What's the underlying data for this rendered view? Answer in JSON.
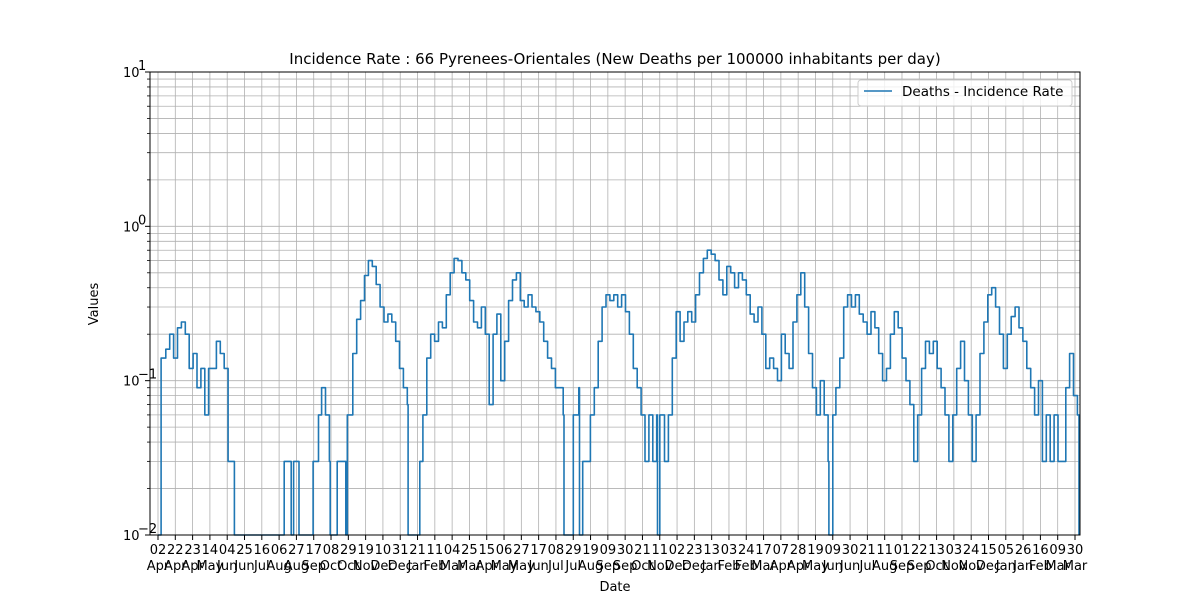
{
  "chart_data": {
    "type": "line",
    "title": "Incidence Rate : 66 Pyrenees-Orientales (New Deaths per 100000 inhabitants per day)",
    "xlabel": "Date",
    "ylabel": "Values",
    "yscale": "log",
    "ylim": [
      0.01,
      10
    ],
    "y_ticks": [
      {
        "value": 0.01,
        "label": "10"
      },
      {
        "value": 0.1,
        "label": "10"
      },
      {
        "value": 1,
        "label": "10"
      },
      {
        "value": 10,
        "label": "10"
      }
    ],
    "y_tick_exponents": [
      "−2",
      "−1",
      "0",
      "1"
    ],
    "grid": true,
    "legend": {
      "position": "upper right",
      "entries": [
        "Deaths - Incidence Rate"
      ]
    },
    "series_color": "#1f77b4",
    "x_ticks": [
      {
        "day": "02",
        "month": "Apr"
      },
      {
        "day": "22",
        "month": "Apr"
      },
      {
        "day": "23",
        "month": "Apr"
      },
      {
        "day": "14",
        "month": "May"
      },
      {
        "day": "04",
        "month": "Jun"
      },
      {
        "day": "25",
        "month": "Jun"
      },
      {
        "day": "16",
        "month": "Jul"
      },
      {
        "day": "06",
        "month": "Aug"
      },
      {
        "day": "27",
        "month": "Aug"
      },
      {
        "day": "17",
        "month": "Sep"
      },
      {
        "day": "08",
        "month": "Oct"
      },
      {
        "day": "29",
        "month": "Oct"
      },
      {
        "day": "19",
        "month": "Nov"
      },
      {
        "day": "10",
        "month": "Dec"
      },
      {
        "day": "31",
        "month": "Dec"
      },
      {
        "day": "21",
        "month": "Jan"
      },
      {
        "day": "11",
        "month": "Feb"
      },
      {
        "day": "04",
        "month": "Mar"
      },
      {
        "day": "25",
        "month": "Mar"
      },
      {
        "day": "15",
        "month": "Apr"
      },
      {
        "day": "06",
        "month": "May"
      },
      {
        "day": "27",
        "month": "May"
      },
      {
        "day": "17",
        "month": "Jun"
      },
      {
        "day": "08",
        "month": "Jul"
      },
      {
        "day": "29",
        "month": "Jul"
      },
      {
        "day": "19",
        "month": "Aug"
      },
      {
        "day": "09",
        "month": "Sep"
      },
      {
        "day": "30",
        "month": "Sep"
      },
      {
        "day": "21",
        "month": "Oct"
      },
      {
        "day": "11",
        "month": "Nov"
      },
      {
        "day": "02",
        "month": "Dec"
      },
      {
        "day": "23",
        "month": "Dec"
      },
      {
        "day": "13",
        "month": "Jan"
      },
      {
        "day": "03",
        "month": "Feb"
      },
      {
        "day": "24",
        "month": "Feb"
      },
      {
        "day": "17",
        "month": "Mar"
      },
      {
        "day": "07",
        "month": "Apr"
      },
      {
        "day": "28",
        "month": "Apr"
      },
      {
        "day": "19",
        "month": "May"
      },
      {
        "day": "09",
        "month": "Jun"
      },
      {
        "day": "30",
        "month": "Jun"
      },
      {
        "day": "21",
        "month": "Jul"
      },
      {
        "day": "11",
        "month": "Aug"
      },
      {
        "day": "01",
        "month": "Sep"
      },
      {
        "day": "22",
        "month": "Sep"
      },
      {
        "day": "13",
        "month": "Oct"
      },
      {
        "day": "03",
        "month": "Nov"
      },
      {
        "day": "24",
        "month": "Nov"
      },
      {
        "day": "15",
        "month": "Dec"
      },
      {
        "day": "05",
        "month": "Jan"
      },
      {
        "day": "26",
        "month": "Jan"
      },
      {
        "day": "16",
        "month": "Feb"
      },
      {
        "day": "09",
        "month": "Mar"
      },
      {
        "day": "30",
        "month": "Mar"
      }
    ],
    "series": [
      {
        "name": "Deaths - Incidence Rate",
        "points": [
          [
            0,
            0.01
          ],
          [
            0.4,
            0.14
          ],
          [
            1,
            0.16
          ],
          [
            1.5,
            0.2
          ],
          [
            2,
            0.14
          ],
          [
            2.5,
            0.22
          ],
          [
            3,
            0.24
          ],
          [
            3.5,
            0.2
          ],
          [
            4,
            0.12
          ],
          [
            4.5,
            0.15
          ],
          [
            5,
            0.09
          ],
          [
            5.5,
            0.12
          ],
          [
            6,
            0.06
          ],
          [
            6.5,
            0.12
          ],
          [
            7,
            0.12
          ],
          [
            7.5,
            0.18
          ],
          [
            8,
            0.15
          ],
          [
            8.5,
            0.12
          ],
          [
            9,
            0.03
          ],
          [
            9.6,
            0.03
          ],
          [
            9.8,
            0.01
          ],
          [
            16,
            0.01
          ],
          [
            16.2,
            0.03
          ],
          [
            17,
            0.03
          ],
          [
            17.1,
            0.01
          ],
          [
            17.4,
            0.03
          ],
          [
            18,
            0.03
          ],
          [
            18.1,
            0.01
          ],
          [
            19.8,
            0.01
          ],
          [
            19.9,
            0.03
          ],
          [
            20.5,
            0.03
          ],
          [
            20.6,
            0.06
          ],
          [
            21,
            0.09
          ],
          [
            21.5,
            0.06
          ],
          [
            22,
            0.03
          ],
          [
            22.1,
            0.01
          ],
          [
            23,
            0.03
          ],
          [
            24,
            0.03
          ],
          [
            24.1,
            0.01
          ],
          [
            24.3,
            0.06
          ],
          [
            25,
            0.15
          ],
          [
            25.5,
            0.25
          ],
          [
            26,
            0.33
          ],
          [
            26.5,
            0.48
          ],
          [
            27,
            0.6
          ],
          [
            27.5,
            0.55
          ],
          [
            28,
            0.42
          ],
          [
            28.5,
            0.3
          ],
          [
            29,
            0.24
          ],
          [
            29.5,
            0.27
          ],
          [
            30,
            0.24
          ],
          [
            30.5,
            0.18
          ],
          [
            31,
            0.12
          ],
          [
            31.5,
            0.09
          ],
          [
            32,
            0.07
          ],
          [
            32.1,
            0.01
          ],
          [
            33.5,
            0.01
          ],
          [
            33.6,
            0.03
          ],
          [
            34,
            0.06
          ],
          [
            34.5,
            0.14
          ],
          [
            35,
            0.2
          ],
          [
            35.5,
            0.18
          ],
          [
            36,
            0.24
          ],
          [
            36.5,
            0.22
          ],
          [
            37,
            0.36
          ],
          [
            37.5,
            0.5
          ],
          [
            38,
            0.62
          ],
          [
            38.5,
            0.6
          ],
          [
            39,
            0.5
          ],
          [
            39.5,
            0.45
          ],
          [
            40,
            0.33
          ],
          [
            40.5,
            0.24
          ],
          [
            41,
            0.22
          ],
          [
            41.5,
            0.3
          ],
          [
            42,
            0.2
          ],
          [
            42.5,
            0.07
          ],
          [
            43,
            0.2
          ],
          [
            43.5,
            0.27
          ],
          [
            44,
            0.1
          ],
          [
            44.5,
            0.18
          ],
          [
            45,
            0.33
          ],
          [
            45.5,
            0.45
          ],
          [
            46,
            0.5
          ],
          [
            46.5,
            0.33
          ],
          [
            47,
            0.3
          ],
          [
            47.5,
            0.36
          ],
          [
            48,
            0.3
          ],
          [
            48.5,
            0.28
          ],
          [
            49,
            0.24
          ],
          [
            49.5,
            0.18
          ],
          [
            50,
            0.14
          ],
          [
            50.5,
            0.12
          ],
          [
            51,
            0.09
          ],
          [
            51.5,
            0.09
          ],
          [
            52,
            0.06
          ],
          [
            52.1,
            0.01
          ],
          [
            53.2,
            0.01
          ],
          [
            53.3,
            0.06
          ],
          [
            54,
            0.09
          ],
          [
            54.1,
            0.01
          ],
          [
            54.5,
            0.03
          ],
          [
            55,
            0.03
          ],
          [
            55.5,
            0.06
          ],
          [
            56,
            0.09
          ],
          [
            56.5,
            0.18
          ],
          [
            57,
            0.3
          ],
          [
            57.5,
            0.36
          ],
          [
            58,
            0.33
          ],
          [
            58.5,
            0.36
          ],
          [
            59,
            0.3
          ],
          [
            59.5,
            0.36
          ],
          [
            60,
            0.28
          ],
          [
            60.5,
            0.2
          ],
          [
            61,
            0.12
          ],
          [
            61.5,
            0.09
          ],
          [
            62,
            0.06
          ],
          [
            62.5,
            0.03
          ],
          [
            63,
            0.06
          ],
          [
            63.5,
            0.03
          ],
          [
            64,
            0.06
          ],
          [
            64.1,
            0.01
          ],
          [
            64.4,
            0.06
          ],
          [
            65,
            0.03
          ],
          [
            65.5,
            0.06
          ],
          [
            66,
            0.14
          ],
          [
            66.5,
            0.28
          ],
          [
            67,
            0.18
          ],
          [
            67.5,
            0.24
          ],
          [
            68,
            0.28
          ],
          [
            68.5,
            0.24
          ],
          [
            69,
            0.36
          ],
          [
            69.5,
            0.5
          ],
          [
            70,
            0.62
          ],
          [
            70.5,
            0.7
          ],
          [
            71,
            0.66
          ],
          [
            71.5,
            0.6
          ],
          [
            72,
            0.45
          ],
          [
            72.5,
            0.36
          ],
          [
            73,
            0.55
          ],
          [
            73.5,
            0.5
          ],
          [
            74,
            0.4
          ],
          [
            74.5,
            0.5
          ],
          [
            75,
            0.45
          ],
          [
            75.5,
            0.36
          ],
          [
            76,
            0.27
          ],
          [
            76.5,
            0.24
          ],
          [
            77,
            0.3
          ],
          [
            77.5,
            0.2
          ],
          [
            78,
            0.12
          ],
          [
            78.5,
            0.14
          ],
          [
            79,
            0.12
          ],
          [
            79.5,
            0.1
          ],
          [
            80,
            0.2
          ],
          [
            80.5,
            0.15
          ],
          [
            81,
            0.12
          ],
          [
            81.5,
            0.24
          ],
          [
            82,
            0.36
          ],
          [
            82.5,
            0.5
          ],
          [
            83,
            0.3
          ],
          [
            83.5,
            0.15
          ],
          [
            84,
            0.09
          ],
          [
            84.5,
            0.06
          ],
          [
            85,
            0.1
          ],
          [
            85.5,
            0.06
          ],
          [
            86,
            0.03
          ],
          [
            86.1,
            0.01
          ],
          [
            86.5,
            0.01
          ],
          [
            86.6,
            0.06
          ],
          [
            87,
            0.09
          ],
          [
            87.5,
            0.14
          ],
          [
            88,
            0.3
          ],
          [
            88.5,
            0.36
          ],
          [
            89,
            0.3
          ],
          [
            89.5,
            0.36
          ],
          [
            90,
            0.27
          ],
          [
            90.5,
            0.24
          ],
          [
            91,
            0.2
          ],
          [
            91.5,
            0.28
          ],
          [
            92,
            0.22
          ],
          [
            92.5,
            0.15
          ],
          [
            93,
            0.1
          ],
          [
            93.5,
            0.12
          ],
          [
            94,
            0.2
          ],
          [
            94.5,
            0.28
          ],
          [
            95,
            0.22
          ],
          [
            95.5,
            0.14
          ],
          [
            96,
            0.1
          ],
          [
            96.5,
            0.07
          ],
          [
            97,
            0.03
          ],
          [
            97.5,
            0.06
          ],
          [
            98,
            0.12
          ],
          [
            98.5,
            0.18
          ],
          [
            99,
            0.15
          ],
          [
            99.5,
            0.18
          ],
          [
            100,
            0.12
          ],
          [
            100.5,
            0.09
          ],
          [
            101,
            0.06
          ],
          [
            101.5,
            0.03
          ],
          [
            102,
            0.06
          ],
          [
            102.5,
            0.12
          ],
          [
            103,
            0.18
          ],
          [
            103.5,
            0.1
          ],
          [
            104,
            0.06
          ],
          [
            104.5,
            0.03
          ],
          [
            105,
            0.06
          ],
          [
            105.5,
            0.15
          ],
          [
            106,
            0.24
          ],
          [
            106.5,
            0.36
          ],
          [
            107,
            0.4
          ],
          [
            107.5,
            0.3
          ],
          [
            108,
            0.2
          ],
          [
            108.5,
            0.12
          ],
          [
            109,
            0.2
          ],
          [
            109.5,
            0.26
          ],
          [
            110,
            0.3
          ],
          [
            110.5,
            0.22
          ],
          [
            111,
            0.18
          ],
          [
            111.5,
            0.12
          ],
          [
            112,
            0.09
          ],
          [
            112.5,
            0.06
          ],
          [
            113,
            0.1
          ],
          [
            113.5,
            0.03
          ],
          [
            114,
            0.06
          ],
          [
            114.5,
            0.03
          ],
          [
            115,
            0.06
          ],
          [
            115.5,
            0.03
          ],
          [
            116,
            0.03
          ],
          [
            116.5,
            0.09
          ],
          [
            117,
            0.15
          ],
          [
            117.5,
            0.08
          ],
          [
            118,
            0.06
          ],
          [
            118.2,
            0.01
          ]
        ]
      }
    ]
  }
}
